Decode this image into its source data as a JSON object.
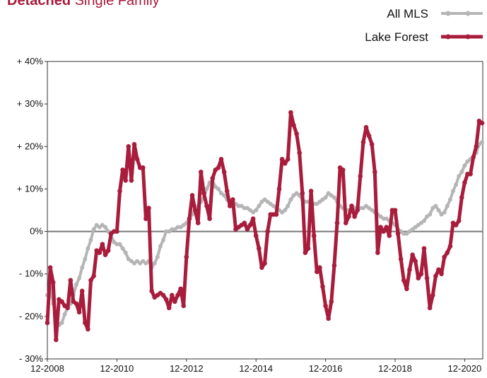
{
  "chart_data": {
    "type": "line",
    "title": [
      "Detached",
      "Single Family"
    ],
    "categories": [
      "12-2008",
      null,
      null,
      null,
      null,
      null,
      null,
      null,
      null,
      null,
      null,
      null,
      null,
      null,
      null,
      null,
      null,
      null,
      null,
      null,
      null,
      null,
      null,
      null,
      "12-2010",
      null,
      null,
      null,
      null,
      null,
      null,
      null,
      null,
      null,
      null,
      null,
      null,
      null,
      null,
      null,
      null,
      null,
      null,
      null,
      null,
      null,
      null,
      null,
      "12-2012",
      null,
      null,
      null,
      null,
      null,
      null,
      null,
      null,
      null,
      null,
      null,
      null,
      null,
      null,
      null,
      null,
      null,
      null,
      null,
      null,
      null,
      null,
      null,
      "12-2014",
      null,
      null,
      null,
      null,
      null,
      null,
      null,
      null,
      null,
      null,
      null,
      null,
      null,
      null,
      null,
      null,
      null,
      null,
      null,
      null,
      null,
      null,
      null,
      "12-2016",
      null,
      null,
      null,
      null,
      null,
      null,
      null,
      null,
      null,
      null,
      null,
      null,
      null,
      null,
      null,
      null,
      null,
      null,
      null,
      null,
      null,
      null,
      null,
      "12-2018",
      null,
      null,
      null,
      null,
      null,
      null,
      null,
      null,
      null,
      null,
      null,
      null,
      null,
      null,
      null,
      null,
      null,
      null,
      null,
      null,
      null,
      null,
      null,
      "12-2020",
      null,
      null,
      null,
      null,
      null,
      null
    ],
    "series": [
      {
        "name": "All MLS",
        "color": "#b5b5b5",
        "values": [
          -15,
          -13,
          -17,
          -20,
          -22,
          -21.5,
          -19.5,
          -18,
          -17,
          -15,
          -12.5,
          -11,
          -8.5,
          -6.5,
          -4,
          -2,
          0.5,
          1.5,
          1,
          1.5,
          1,
          0,
          -1,
          -2.5,
          -3,
          -3,
          -4,
          -5,
          -6.5,
          -7,
          -7.5,
          -7,
          -7.5,
          -7,
          -7.5,
          -7,
          -8.5,
          -7.5,
          -6,
          -3.5,
          -2,
          0,
          0,
          0.5,
          0.5,
          1,
          1,
          1.5,
          2,
          3,
          4,
          5,
          6,
          7,
          8,
          10,
          11.5,
          12,
          10.5,
          10,
          9,
          8.5,
          7.5,
          7,
          6.5,
          6.5,
          6,
          6,
          5.5,
          5.5,
          5,
          4.5,
          5,
          6,
          7,
          7.5,
          7,
          6.5,
          6,
          5.5,
          5,
          4.5,
          5,
          6,
          7.5,
          8.5,
          9,
          8.5,
          7.5,
          7,
          7,
          6.5,
          6.5,
          6.5,
          7,
          7.5,
          8,
          9,
          8.5,
          8,
          7,
          6,
          5.5,
          5,
          5,
          5.5,
          5.5,
          5.5,
          5.5,
          5.5,
          6,
          5.5,
          5,
          4.5,
          4,
          3.5,
          3,
          3,
          2.5,
          2,
          1.5,
          0.5,
          0,
          -0.5,
          -0.5,
          0,
          0.5,
          1,
          1.5,
          2,
          2.5,
          3.5,
          4,
          5.5,
          6,
          5,
          4,
          4.5,
          6,
          7.5,
          9.5,
          11,
          13,
          14,
          15.5,
          16.5,
          17,
          17.5,
          18.5,
          20.5,
          21
        ]
      },
      {
        "name": "Lake Forest",
        "color": "#a81c3c",
        "values": [
          -21.5,
          -8.5,
          -12,
          -25.5,
          -16,
          -16.5,
          -17.5,
          -18,
          -11.5,
          -16.5,
          -17,
          -19,
          -14,
          -21.5,
          -23,
          -11.5,
          -10.5,
          -4.5,
          -5,
          -3,
          -5.5,
          -4.5,
          -0.5,
          0,
          0,
          9.5,
          14.5,
          12,
          20,
          12,
          20.5,
          17,
          15,
          15,
          3,
          5.5,
          -14,
          -15.5,
          -15,
          -14.5,
          -15,
          -16,
          -18,
          -15,
          -16.5,
          -15,
          -13.5,
          -17.5,
          -6,
          3,
          8.5,
          5,
          2,
          14,
          9,
          6,
          3,
          12.5,
          14.5,
          15,
          17,
          14,
          9.5,
          6,
          7.5,
          0.5,
          1,
          1.5,
          2,
          0.5,
          1.5,
          3,
          -1,
          -4,
          -8.5,
          -7.5,
          0,
          4,
          4,
          4,
          10,
          17,
          16,
          17,
          28,
          25,
          23,
          18.5,
          9,
          -5,
          -4,
          9.5,
          -1,
          -9.5,
          -8.5,
          -13,
          -17.5,
          -20.5,
          -16.5,
          -8,
          2,
          15,
          14.5,
          2,
          3.5,
          6,
          3.5,
          5,
          13,
          21,
          24.5,
          22.5,
          20.5,
          14,
          -5,
          1,
          0,
          1,
          -1,
          5,
          5,
          -0.5,
          -6.5,
          -11.5,
          -13.5,
          -9,
          -5.5,
          -7,
          -11,
          -10,
          -4,
          -11,
          -18,
          -15,
          -10.5,
          -9,
          -10,
          -6,
          -5,
          -3.5,
          2,
          1.5,
          2.5,
          8,
          11.5,
          13.5,
          13.5,
          17.5,
          20,
          26,
          25.5
        ]
      }
    ],
    "ylim": [
      -30,
      40
    ],
    "yticks": [
      {
        "value": -30,
        "label": "- 30%"
      },
      {
        "value": -20,
        "label": "- 20%"
      },
      {
        "value": -10,
        "label": "- 10%"
      },
      {
        "value": 0,
        "label": "0%"
      },
      {
        "value": 10,
        "label": "+ 10%"
      },
      {
        "value": 20,
        "label": "+ 20%"
      },
      {
        "value": 30,
        "label": "+ 30%"
      },
      {
        "value": 40,
        "label": "+ 40%"
      }
    ],
    "legend": "top-right"
  }
}
